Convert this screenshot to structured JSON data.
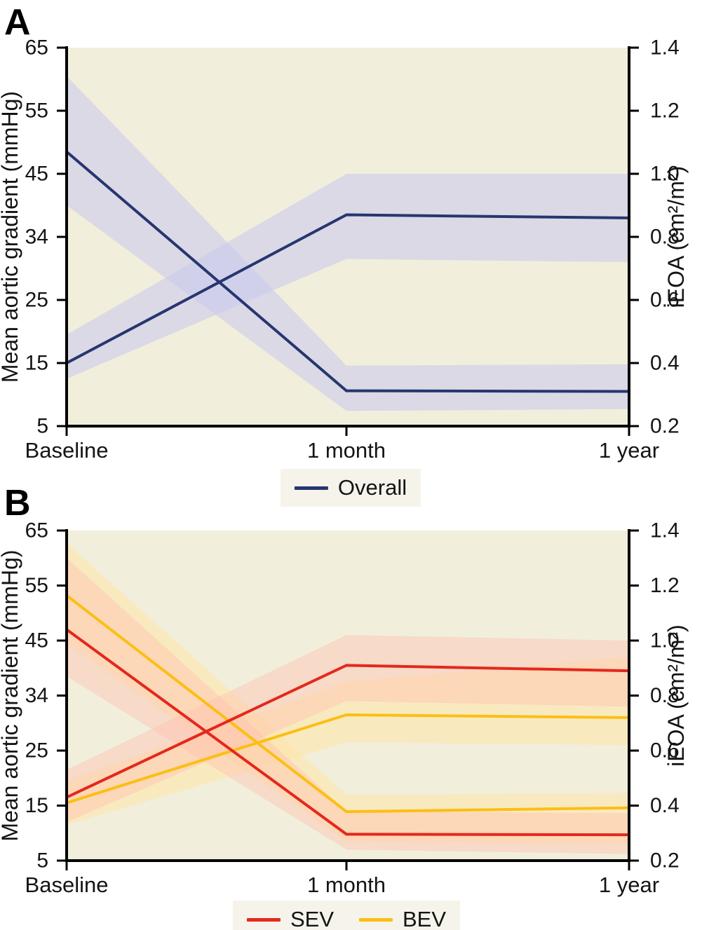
{
  "figure": {
    "background": "#ffffff",
    "text_color": "#141414",
    "axis_color": "#000000"
  },
  "chart_data": [
    {
      "type": "line",
      "panel_label": "A",
      "plot_background": "#f1eedc",
      "x_categories": [
        "Baseline",
        "1 month",
        "1 year"
      ],
      "left_axis": {
        "title": "Mean aortic gradient (mmHg)",
        "tick_labels": [
          "65",
          "55",
          "45",
          "34",
          "25",
          "15",
          "5"
        ],
        "range": [
          5,
          65
        ]
      },
      "right_axis": {
        "title": "iEOA (cm²/m²)",
        "tick_labels": [
          "1.4",
          "1.2",
          "1.0",
          "0.8",
          "0.6",
          "0.4",
          "0.2"
        ],
        "range": [
          0.2,
          1.4
        ]
      },
      "series": [
        {
          "key": "overall-gradient",
          "name": "Overall mean aortic gradient",
          "axis": "left",
          "color": "#26366f",
          "band_color": "#c9c9ef",
          "band_opacity": 0.55,
          "values": [
            48.5,
            10.6,
            10.5
          ],
          "ci_low": [
            40.0,
            7.4,
            7.7
          ],
          "ci_high": [
            60.5,
            14.6,
            14.8
          ]
        },
        {
          "key": "overall-ieoa",
          "name": "Overall iEOA",
          "axis": "right",
          "color": "#26366f",
          "band_color": "#c9c9ef",
          "band_opacity": 0.55,
          "values": [
            0.4,
            0.87,
            0.86
          ],
          "ci_low": [
            0.35,
            0.73,
            0.72
          ],
          "ci_high": [
            0.49,
            1.0,
            1.0
          ]
        }
      ],
      "legend": [
        {
          "label": "Overall",
          "color": "#26366f"
        }
      ]
    },
    {
      "type": "line",
      "panel_label": "B",
      "plot_background": "#f1eedc",
      "x_categories": [
        "Baseline",
        "1 month",
        "1 year"
      ],
      "left_axis": {
        "title": "Mean aortic gradient (mmHg)",
        "tick_labels": [
          "65",
          "55",
          "45",
          "34",
          "25",
          "15",
          "5"
        ],
        "range": [
          5,
          65
        ]
      },
      "right_axis": {
        "title": "iEOA (cm²/m²)",
        "tick_labels": [
          "1.4",
          "1.2",
          "1.0",
          "0.8",
          "0.6",
          "0.4",
          "0.2"
        ],
        "range": [
          0.2,
          1.4
        ]
      },
      "series": [
        {
          "key": "bev-gradient",
          "name": "BEV mean aortic gradient",
          "axis": "left",
          "color": "#fbbf13",
          "band_color": "#ffe6a8",
          "band_opacity": 0.55,
          "values": [
            53.2,
            13.9,
            14.6
          ],
          "ci_low": [
            44.5,
            8.5,
            8.0
          ],
          "ci_high": [
            62.7,
            17.0,
            17.3
          ]
        },
        {
          "key": "bev-ieoa",
          "name": "BEV iEOA",
          "axis": "right",
          "color": "#fbbf13",
          "band_color": "#ffe6a8",
          "band_opacity": 0.55,
          "values": [
            0.41,
            0.73,
            0.72
          ],
          "ci_low": [
            0.33,
            0.63,
            0.62
          ],
          "ci_high": [
            0.49,
            0.85,
            0.94
          ]
        },
        {
          "key": "sev-gradient",
          "name": "SEV mean aortic gradient",
          "axis": "left",
          "color": "#e4281c",
          "band_color": "#ffc0b0",
          "band_opacity": 0.45,
          "values": [
            47.0,
            9.8,
            9.7
          ],
          "ci_low": [
            38.5,
            7.0,
            6.2
          ],
          "ci_high": [
            60.0,
            14.0,
            13.6
          ]
        },
        {
          "key": "sev-ieoa",
          "name": "SEV iEOA",
          "axis": "right",
          "color": "#e4281c",
          "band_color": "#ffc0b0",
          "band_opacity": 0.45,
          "values": [
            0.43,
            0.91,
            0.89
          ],
          "ci_low": [
            0.34,
            0.78,
            0.76
          ],
          "ci_high": [
            0.53,
            1.02,
            1.0
          ]
        }
      ],
      "legend": [
        {
          "label": "SEV",
          "color": "#e4281c"
        },
        {
          "label": "BEV",
          "color": "#fbbf13"
        }
      ]
    }
  ]
}
